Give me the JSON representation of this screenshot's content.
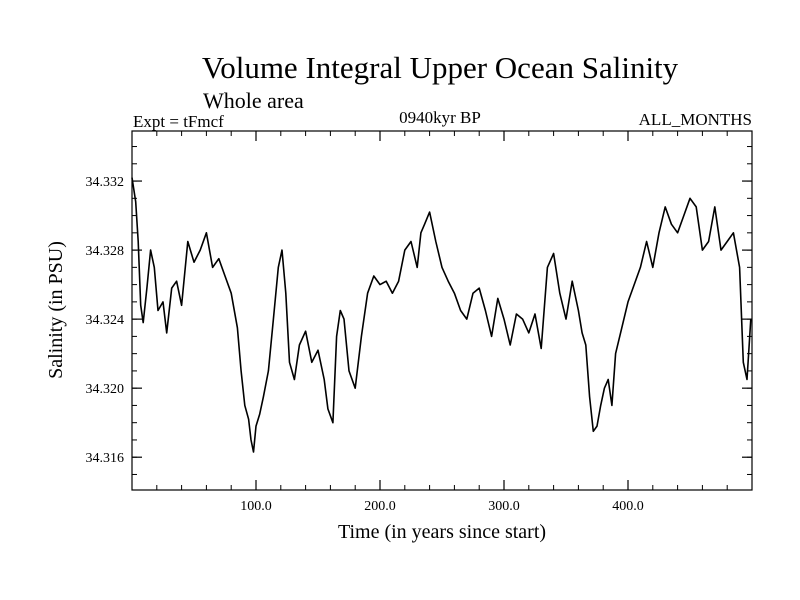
{
  "chart_data": {
    "type": "line",
    "title": "Volume Integral Upper Ocean Salinity",
    "subtitle": "Whole area",
    "left_label": "Expt = tFmcf",
    "center_label": "0940kyr BP",
    "right_label": "ALL_MONTHS",
    "xlabel": "Time (in years since start)",
    "ylabel": "Salinity (in PSU)",
    "xlim": [
      0,
      500
    ],
    "ylim": [
      34.3141,
      34.3349
    ],
    "xticks": [
      100,
      200,
      300,
      400
    ],
    "xtick_labels": [
      "100.0",
      "200.0",
      "300.0",
      "400.0"
    ],
    "yticks": [
      34.316,
      34.32,
      34.324,
      34.328,
      34.332
    ],
    "ytick_labels": [
      "34.316",
      "34.320",
      "34.324",
      "34.328",
      "34.332"
    ],
    "series": [
      {
        "name": "Salinity",
        "x": [
          0,
          3,
          5,
          7,
          9,
          12,
          15,
          18,
          21,
          25,
          28,
          32,
          36,
          40,
          45,
          50,
          55,
          60,
          65,
          70,
          75,
          80,
          85,
          88,
          91,
          94,
          96,
          98,
          100,
          103,
          106,
          110,
          114,
          118,
          121,
          124,
          127,
          131,
          135,
          140,
          145,
          150,
          155,
          158,
          162,
          165,
          168,
          171,
          175,
          180,
          185,
          190,
          195,
          200,
          205,
          210,
          215,
          220,
          225,
          230,
          233,
          236,
          240,
          245,
          250,
          255,
          260,
          265,
          270,
          275,
          280,
          285,
          290,
          295,
          300,
          305,
          310,
          315,
          320,
          325,
          330,
          335,
          340,
          345,
          350,
          355,
          360,
          363,
          366,
          369,
          372,
          375,
          378,
          381,
          384,
          387,
          390,
          395,
          400,
          405,
          410,
          415,
          420,
          425,
          430,
          435,
          440,
          445,
          450,
          455,
          460,
          465,
          470,
          475,
          480,
          485,
          490,
          493,
          496,
          499
        ],
        "values": [
          34.3322,
          34.3308,
          34.3285,
          34.3248,
          34.3238,
          34.3258,
          34.328,
          34.327,
          34.3245,
          34.325,
          34.3232,
          34.3258,
          34.3262,
          34.3248,
          34.3285,
          34.3273,
          34.328,
          34.329,
          34.327,
          34.3275,
          34.3265,
          34.3255,
          34.3235,
          34.321,
          34.319,
          34.3182,
          34.317,
          34.3163,
          34.3178,
          34.3185,
          34.3195,
          34.321,
          34.324,
          34.327,
          34.328,
          34.3255,
          34.3215,
          34.3205,
          34.3225,
          34.3233,
          34.3215,
          34.3222,
          34.3205,
          34.3188,
          34.318,
          34.323,
          34.3245,
          34.324,
          34.321,
          34.32,
          34.323,
          34.3255,
          34.3265,
          34.326,
          34.3262,
          34.3255,
          34.3262,
          34.328,
          34.3285,
          34.327,
          34.329,
          34.3295,
          34.3302,
          34.3285,
          34.327,
          34.3262,
          34.3255,
          34.3245,
          34.324,
          34.3255,
          34.3258,
          34.3245,
          34.323,
          34.3252,
          34.324,
          34.3225,
          34.3243,
          34.324,
          34.3232,
          34.3243,
          34.3223,
          34.327,
          34.3278,
          34.3255,
          34.324,
          34.3262,
          34.3245,
          34.3232,
          34.3225,
          34.3195,
          34.3175,
          34.3178,
          34.319,
          34.32,
          34.3205,
          34.319,
          34.322,
          34.3235,
          34.325,
          34.326,
          34.327,
          34.3285,
          34.327,
          34.329,
          34.3305,
          34.3295,
          34.329,
          34.33,
          34.331,
          34.3305,
          34.328,
          34.3285,
          34.3305,
          34.328,
          34.3285,
          34.329,
          34.327,
          34.3215,
          34.3205,
          34.324
        ]
      }
    ]
  }
}
